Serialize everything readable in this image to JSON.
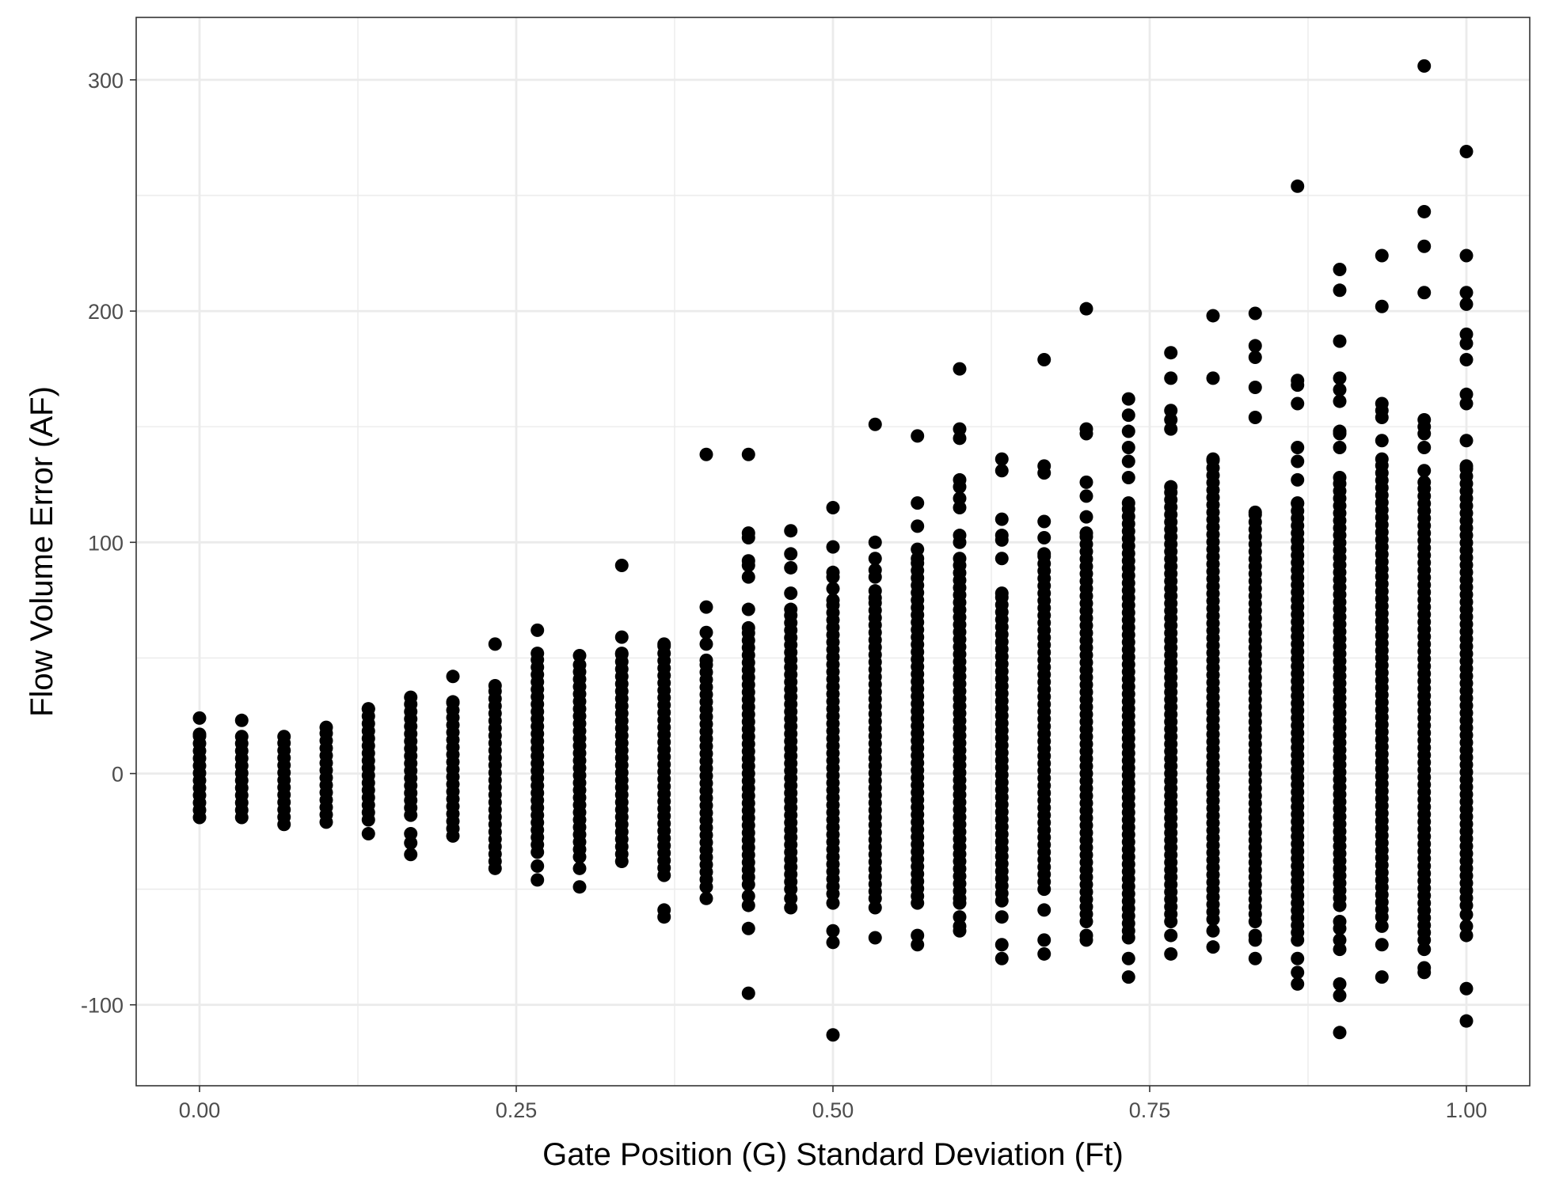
{
  "chart_data": {
    "type": "scatter",
    "title": "",
    "xlabel": "Gate Position (G) Standard Deviation (Ft)",
    "ylabel": "Flow Volume Error (AF)",
    "xlim": [
      -0.05,
      1.05
    ],
    "ylim": [
      -135,
      327
    ],
    "x_ticks": [
      0.0,
      0.25,
      0.5,
      0.75,
      1.0
    ],
    "x_tick_labels": [
      "0.00",
      "0.25",
      "0.50",
      "0.75",
      "1.00"
    ],
    "y_ticks": [
      -100,
      0,
      100,
      200,
      300
    ],
    "y_tick_labels": [
      "-100",
      "0",
      "100",
      "200",
      "300"
    ],
    "grid": true,
    "legend": "none",
    "point_color": "#000000",
    "columns": [
      {
        "x": 0.0,
        "min": -19,
        "max": 17,
        "extra": [
          24
        ]
      },
      {
        "x": 0.0333,
        "min": -19,
        "max": 16,
        "extra": [
          23
        ]
      },
      {
        "x": 0.0667,
        "min": -22,
        "max": 16,
        "extra": []
      },
      {
        "x": 0.1,
        "min": -21,
        "max": 20,
        "extra": []
      },
      {
        "x": 0.1333,
        "min": -20,
        "max": 28,
        "extra": [
          -26
        ]
      },
      {
        "x": 0.1667,
        "min": -18,
        "max": 33,
        "extra": [
          -26,
          -30,
          -35
        ]
      },
      {
        "x": 0.2,
        "min": -27,
        "max": 31,
        "extra": [
          42
        ]
      },
      {
        "x": 0.2333,
        "min": -38,
        "max": 38,
        "extra": [
          -41,
          56
        ]
      },
      {
        "x": 0.2667,
        "min": -34,
        "max": 52,
        "extra": [
          -40,
          -46,
          62
        ]
      },
      {
        "x": 0.3,
        "min": -36,
        "max": 47,
        "extra": [
          -41,
          -49,
          51
        ]
      },
      {
        "x": 0.3333,
        "min": -38,
        "max": 52,
        "extra": [
          59,
          90
        ]
      },
      {
        "x": 0.3667,
        "min": -44,
        "max": 56,
        "extra": [
          -59,
          -62
        ]
      },
      {
        "x": 0.4,
        "min": -49,
        "max": 49,
        "extra": [
          -54,
          56,
          61,
          72,
          138
        ]
      },
      {
        "x": 0.4333,
        "min": -48,
        "max": 63,
        "extra": [
          -53,
          -57,
          -67,
          -95,
          71,
          85,
          90,
          92,
          102,
          104,
          138
        ]
      },
      {
        "x": 0.4667,
        "min": -50,
        "max": 71,
        "extra": [
          -54,
          -58,
          78,
          89,
          95,
          105
        ]
      },
      {
        "x": 0.5,
        "min": -52,
        "max": 75,
        "extra": [
          -56,
          -68,
          -73,
          -113,
          80,
          85,
          87,
          98,
          115
        ]
      },
      {
        "x": 0.5333,
        "min": -51,
        "max": 76,
        "extra": [
          -54,
          -58,
          -71,
          79,
          85,
          88,
          93,
          100,
          151
        ]
      },
      {
        "x": 0.5667,
        "min": -53,
        "max": 93,
        "extra": [
          -56,
          -70,
          -74,
          97,
          107,
          117,
          146
        ]
      },
      {
        "x": 0.6,
        "min": -54,
        "max": 93,
        "extra": [
          -56,
          -62,
          -66,
          -68,
          100,
          103,
          115,
          119,
          124,
          127,
          145,
          149,
          175
        ]
      },
      {
        "x": 0.6333,
        "min": -55,
        "max": 78,
        "extra": [
          -62,
          -74,
          -80,
          93,
          101,
          103,
          110,
          131,
          136
        ]
      },
      {
        "x": 0.6667,
        "min": -50,
        "max": 95,
        "extra": [
          -59,
          -72,
          -78,
          102,
          109,
          130,
          133,
          179
        ]
      },
      {
        "x": 0.7,
        "min": -64,
        "max": 104,
        "extra": [
          -70,
          -72,
          111,
          120,
          126,
          147,
          149,
          201
        ]
      },
      {
        "x": 0.7333,
        "min": -68,
        "max": 117,
        "extra": [
          -71,
          -80,
          -88,
          128,
          135,
          141,
          148,
          155,
          162
        ]
      },
      {
        "x": 0.7667,
        "min": -64,
        "max": 124,
        "extra": [
          -70,
          -78,
          149,
          153,
          157,
          171,
          182
        ]
      },
      {
        "x": 0.8,
        "min": -63,
        "max": 136,
        "extra": [
          -68,
          -75,
          171,
          198
        ]
      },
      {
        "x": 0.8333,
        "min": -64,
        "max": 113,
        "extra": [
          -70,
          -72,
          -80,
          154,
          167,
          180,
          185,
          199
        ]
      },
      {
        "x": 0.8667,
        "min": -72,
        "max": 117,
        "extra": [
          -80,
          -86,
          -91,
          127,
          135,
          141,
          160,
          168,
          170,
          254
        ]
      },
      {
        "x": 0.9,
        "min": -57,
        "max": 128,
        "extra": [
          -64,
          -67,
          -72,
          -76,
          -91,
          -96,
          -112,
          141,
          147,
          148,
          161,
          166,
          171,
          187,
          209,
          218
        ]
      },
      {
        "x": 0.9333,
        "min": -62,
        "max": 136,
        "extra": [
          -66,
          -74,
          -88,
          144,
          154,
          157,
          160,
          202,
          224
        ]
      },
      {
        "x": 0.9667,
        "min": -72,
        "max": 126,
        "extra": [
          -76,
          -84,
          -86,
          131,
          141,
          147,
          150,
          153,
          208,
          228,
          243,
          306
        ]
      },
      {
        "x": 1.0,
        "min": -57,
        "max": 133,
        "extra": [
          -61,
          -66,
          -70,
          -93,
          -107,
          144,
          160,
          164,
          179,
          186,
          190,
          203,
          208,
          224,
          269
        ]
      }
    ]
  }
}
